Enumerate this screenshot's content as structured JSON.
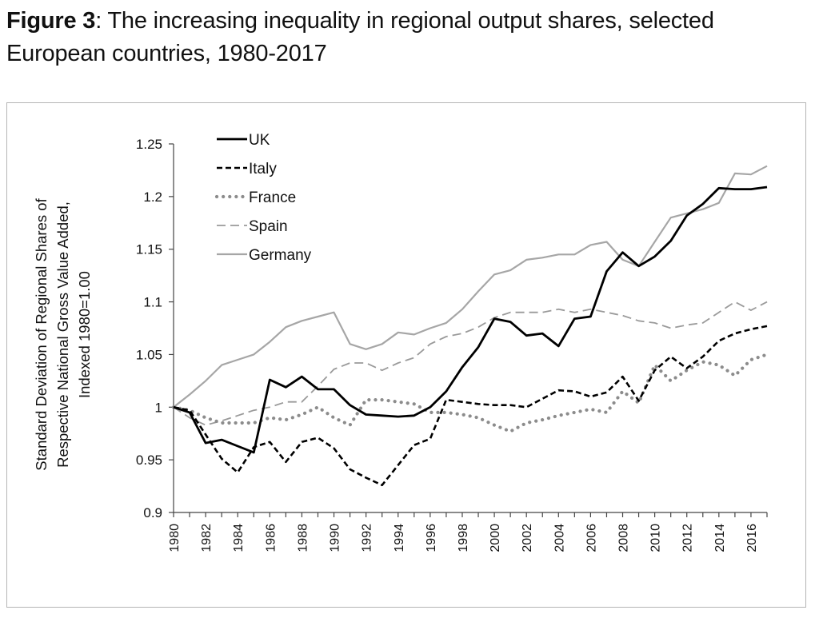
{
  "figure": {
    "label": "Figure 3",
    "title": ": The increasing inequality in regional output shares, selected European countries, 1980-2017"
  },
  "chart_data": {
    "type": "line",
    "title": "",
    "xlabel": "",
    "ylabel": "Standard Deviation of Regional Shares of Respective National Gross Value Added, Indexed 1980=1.00",
    "ylabel_lines": [
      "Standard Deviation of Regional Shares of",
      "Respective National Gross Value Added,",
      "Indexed 1980=1.00"
    ],
    "xlim": [
      1980,
      2017
    ],
    "ylim": [
      0.9,
      1.25
    ],
    "x_ticks": [
      1980,
      1982,
      1984,
      1986,
      1988,
      1990,
      1992,
      1994,
      1996,
      1998,
      2000,
      2002,
      2004,
      2006,
      2008,
      2010,
      2012,
      2014,
      2016
    ],
    "y_ticks": [
      0.9,
      0.95,
      1,
      1.05,
      1.1,
      1.15,
      1.2,
      1.25
    ],
    "y_tick_labels": [
      "0.9",
      "0.95",
      "1",
      "1.05",
      "1.1",
      "1.15",
      "1.2",
      "1.25"
    ],
    "grid": false,
    "legend_position": "top-left",
    "x": [
      1980,
      1981,
      1982,
      1983,
      1984,
      1985,
      1986,
      1987,
      1988,
      1989,
      1990,
      1991,
      1992,
      1993,
      1994,
      1995,
      1996,
      1997,
      1998,
      1999,
      2000,
      2001,
      2002,
      2003,
      2004,
      2005,
      2006,
      2007,
      2008,
      2009,
      2010,
      2011,
      2012,
      2013,
      2014,
      2015,
      2016,
      2017
    ],
    "series": [
      {
        "name": "UK",
        "color": "#000000",
        "style": "solid",
        "values": [
          1.0,
          0.995,
          0.966,
          0.969,
          0.963,
          0.957,
          1.026,
          1.019,
          1.029,
          1.017,
          1.017,
          1.002,
          0.993,
          0.992,
          0.991,
          0.992,
          1.0,
          1.015,
          1.038,
          1.057,
          1.084,
          1.081,
          1.068,
          1.07,
          1.058,
          1.084,
          1.086,
          1.129,
          1.147,
          1.134,
          1.143,
          1.158,
          1.182,
          1.193,
          1.208,
          1.207,
          1.207,
          1.209
        ]
      },
      {
        "name": "Italy",
        "color": "#000000",
        "style": "dashed",
        "values": [
          1.0,
          0.997,
          0.974,
          0.951,
          0.938,
          0.962,
          0.967,
          0.948,
          0.967,
          0.971,
          0.961,
          0.941,
          0.933,
          0.926,
          0.945,
          0.964,
          0.97,
          1.007,
          1.005,
          1.003,
          1.002,
          1.002,
          1.0,
          1.008,
          1.016,
          1.015,
          1.01,
          1.014,
          1.029,
          1.006,
          1.035,
          1.048,
          1.037,
          1.048,
          1.063,
          1.07,
          1.074,
          1.077
        ]
      },
      {
        "name": "France",
        "color": "#8c8c8c",
        "style": "dotted",
        "values": [
          1.0,
          0.997,
          0.99,
          0.985,
          0.985,
          0.985,
          0.99,
          0.988,
          0.993,
          1.0,
          0.99,
          0.983,
          1.007,
          1.007,
          1.005,
          1.003,
          0.995,
          0.995,
          0.993,
          0.99,
          0.983,
          0.977,
          0.985,
          0.988,
          0.992,
          0.995,
          0.998,
          0.995,
          1.015,
          1.004,
          1.04,
          1.025,
          1.035,
          1.043,
          1.04,
          1.03,
          1.045,
          1.05
        ]
      },
      {
        "name": "Spain",
        "color": "#9a9a9a",
        "style": "longdash",
        "values": [
          1.0,
          0.99,
          0.983,
          0.987,
          0.992,
          0.997,
          1.0,
          1.005,
          1.005,
          1.02,
          1.036,
          1.042,
          1.042,
          1.035,
          1.042,
          1.047,
          1.06,
          1.067,
          1.07,
          1.076,
          1.085,
          1.09,
          1.09,
          1.09,
          1.093,
          1.09,
          1.093,
          1.09,
          1.087,
          1.082,
          1.08,
          1.075,
          1.078,
          1.08,
          1.09,
          1.1,
          1.092,
          1.1
        ]
      },
      {
        "name": "Germany",
        "color": "#a6a6a6",
        "style": "solid",
        "values": [
          1.0,
          1.012,
          1.025,
          1.04,
          1.045,
          1.05,
          1.062,
          1.076,
          1.082,
          1.086,
          1.09,
          1.06,
          1.055,
          1.06,
          1.071,
          1.069,
          1.075,
          1.08,
          1.093,
          1.11,
          1.126,
          1.13,
          1.14,
          1.142,
          1.145,
          1.145,
          1.154,
          1.157,
          1.14,
          1.134,
          1.157,
          1.18,
          1.184,
          1.188,
          1.194,
          1.222,
          1.221,
          1.229
        ]
      }
    ]
  }
}
